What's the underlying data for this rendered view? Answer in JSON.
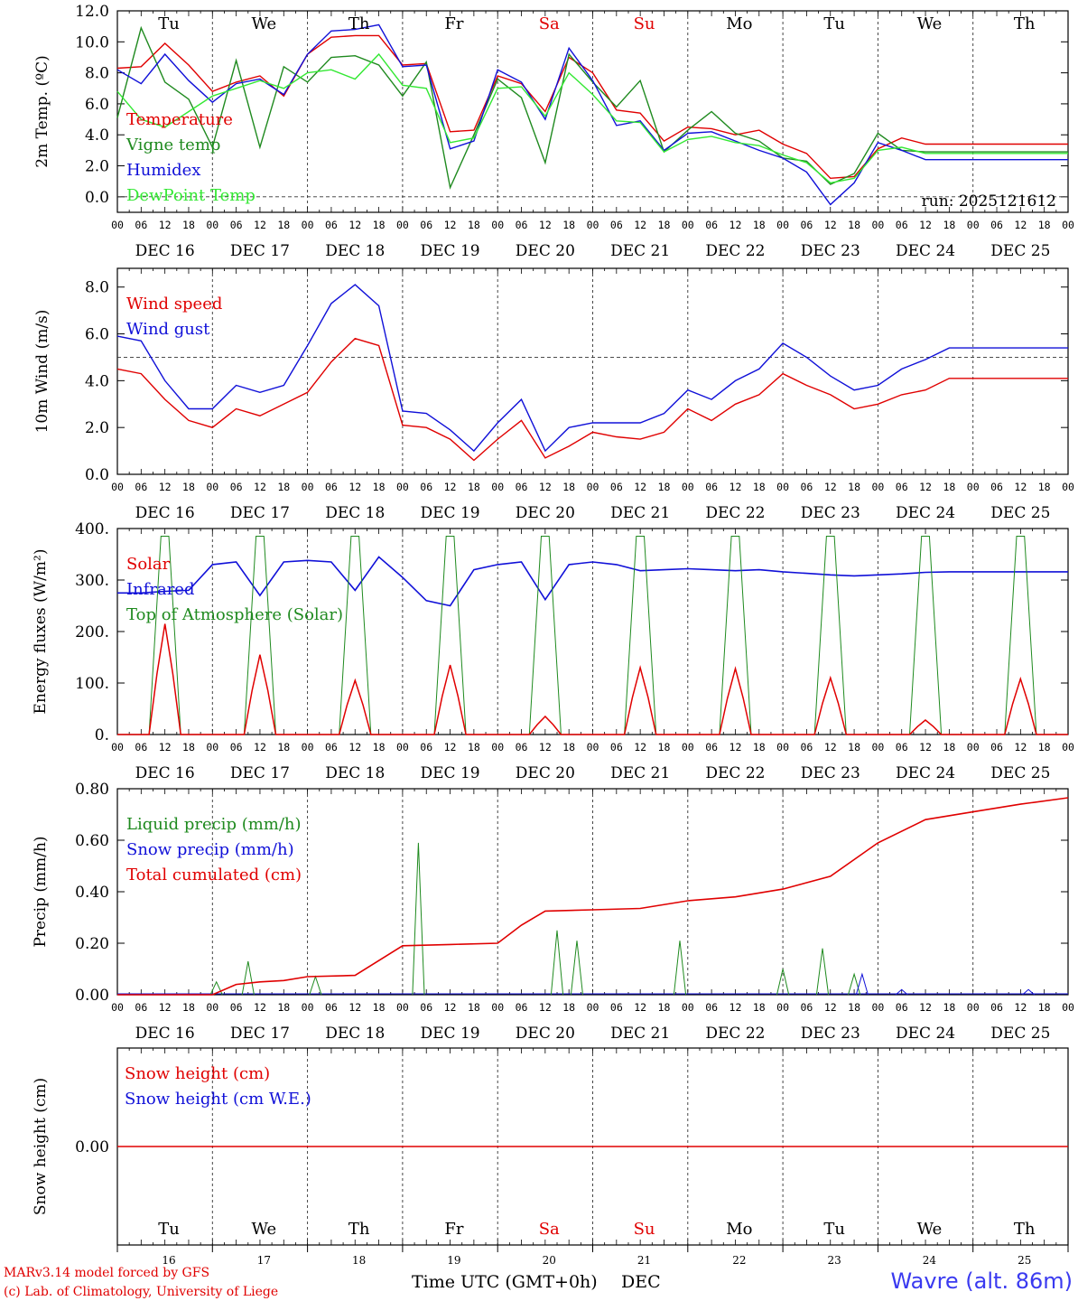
{
  "colors": {
    "red": "#e00000",
    "green": "#1f8a1f",
    "blue": "#1010d8",
    "lightgreen": "#33e833",
    "axis": "#000000",
    "grid": "#333333",
    "weekend": "#e00000"
  },
  "x_ticks": [
    "00",
    "06",
    "12",
    "18"
  ],
  "x_end_tick": "00",
  "dates": [
    "DEC 16",
    "DEC 17",
    "DEC 18",
    "DEC 19",
    "DEC 20",
    "DEC 21",
    "DEC 22",
    "DEC 23",
    "DEC 24",
    "DEC 25"
  ],
  "day_names": [
    {
      "label": "Tu",
      "weekend": false
    },
    {
      "label": "We",
      "weekend": false
    },
    {
      "label": "Th",
      "weekend": false
    },
    {
      "label": "Fr",
      "weekend": false
    },
    {
      "label": "Sa",
      "weekend": true
    },
    {
      "label": "Su",
      "weekend": true
    },
    {
      "label": "Mo",
      "weekend": false
    },
    {
      "label": "Tu",
      "weekend": false
    },
    {
      "label": "We",
      "weekend": false
    },
    {
      "label": "Th",
      "weekend": false
    }
  ],
  "day_numbers": [
    "16",
    "17",
    "18",
    "19",
    "20",
    "21",
    "22",
    "23",
    "24",
    "25"
  ],
  "footer": {
    "line1": "MARv3.14 model forced by GFS",
    "line2": "(c) Lab. of Climatology, University of Liege",
    "xtitle": "Time UTC (GMT+0h)",
    "month": "DEC",
    "station": "Wavre (alt. 86m)"
  },
  "chart_data": [
    {
      "id": "temp",
      "type": "line",
      "ylabel": "2m Temp. (ºC)",
      "ylim": [
        -1,
        12
      ],
      "yticks": [
        "0.0",
        "2.0",
        "4.0",
        "6.0",
        "8.0",
        "10.0",
        "12.0"
      ],
      "ytick_values": [
        0,
        2,
        4,
        6,
        8,
        10,
        12
      ],
      "ref_line": 0,
      "annotation": "run: 2025121612",
      "x_hours": [
        0,
        6,
        12,
        18,
        24,
        30,
        36,
        42,
        48,
        54,
        60,
        66,
        72,
        78,
        84,
        90,
        96,
        102,
        108,
        114,
        120,
        126,
        132,
        138,
        144,
        150,
        156,
        162,
        168,
        174,
        180,
        186,
        192,
        198,
        204,
        210,
        216,
        222,
        228,
        234,
        240
      ],
      "series": [
        {
          "name": "Temperature",
          "color": "red",
          "values": [
            8.3,
            8.4,
            9.9,
            8.5,
            6.8,
            7.4,
            7.8,
            6.5,
            9.2,
            10.3,
            10.4,
            10.4,
            8.5,
            8.6,
            4.2,
            4.3,
            7.8,
            7.3,
            5.5,
            9.0,
            8.0,
            5.6,
            5.4,
            3.6,
            4.5,
            4.4,
            4.0,
            4.3,
            3.4,
            2.8,
            1.2,
            1.3,
            3.1,
            3.8,
            3.4,
            3.4,
            3.4,
            3.4,
            3.4,
            3.4,
            3.4
          ]
        },
        {
          "name": "Vigne temp",
          "color": "green",
          "values": [
            5.1,
            10.9,
            7.4,
            6.3,
            3.2,
            8.8,
            3.2,
            8.4,
            7.4,
            9.0,
            9.1,
            8.5,
            6.5,
            8.7,
            0.6,
            4.0,
            7.6,
            6.4,
            2.2,
            9.2,
            7.4,
            5.8,
            7.5,
            2.9,
            4.3,
            5.5,
            4.1,
            3.6,
            2.5,
            2.3,
            0.8,
            1.5,
            4.1,
            3.0,
            2.9,
            2.9,
            2.9,
            2.9,
            2.9,
            2.9,
            2.9
          ]
        },
        {
          "name": "Humidex",
          "color": "blue",
          "values": [
            8.2,
            7.3,
            9.2,
            7.5,
            6.1,
            7.3,
            7.6,
            6.6,
            9.2,
            10.7,
            10.8,
            11.1,
            8.4,
            8.5,
            3.1,
            3.6,
            8.2,
            7.4,
            5.0,
            9.6,
            7.5,
            4.6,
            4.9,
            3.0,
            4.1,
            4.2,
            3.6,
            3.0,
            2.5,
            1.6,
            -0.5,
            0.9,
            3.5,
            3.0,
            2.4,
            2.4,
            2.4,
            2.4,
            2.4,
            2.4,
            2.4
          ]
        },
        {
          "name": "DewPoint Temp",
          "color": "lightgreen",
          "values": [
            6.8,
            5.0,
            4.5,
            5.5,
            6.5,
            7.0,
            7.5,
            7.0,
            8.0,
            8.2,
            7.6,
            9.2,
            7.2,
            7.0,
            3.5,
            3.8,
            7.0,
            7.1,
            5.2,
            8.0,
            6.6,
            4.9,
            4.8,
            2.9,
            3.7,
            3.9,
            3.5,
            3.3,
            2.7,
            2.2,
            0.9,
            1.2,
            3.0,
            3.2,
            2.8,
            2.8,
            2.8,
            2.8,
            2.8,
            2.8,
            2.8
          ]
        }
      ]
    },
    {
      "id": "wind",
      "type": "line",
      "ylabel": "10m Wind (m/s)",
      "ylim": [
        0,
        8.8
      ],
      "yticks": [
        "0.0",
        "2.0",
        "4.0",
        "6.0",
        "8.0"
      ],
      "ytick_values": [
        0,
        2,
        4,
        6,
        8
      ],
      "ref_line": 5,
      "x_hours": [
        0,
        6,
        12,
        18,
        24,
        30,
        36,
        42,
        48,
        54,
        60,
        66,
        72,
        78,
        84,
        90,
        96,
        102,
        108,
        114,
        120,
        126,
        132,
        138,
        144,
        150,
        156,
        162,
        168,
        174,
        180,
        186,
        192,
        198,
        204,
        210,
        216,
        222,
        228,
        234,
        240
      ],
      "series": [
        {
          "name": "Wind speed",
          "color": "red",
          "values": [
            4.5,
            4.3,
            3.2,
            2.3,
            2.0,
            2.8,
            2.5,
            3.0,
            3.5,
            4.8,
            5.8,
            5.5,
            2.1,
            2.0,
            1.5,
            0.6,
            1.5,
            2.3,
            0.7,
            1.2,
            1.8,
            1.6,
            1.5,
            1.8,
            2.8,
            2.3,
            3.0,
            3.4,
            4.3,
            3.8,
            3.4,
            2.8,
            3.0,
            3.4,
            3.6,
            4.1,
            4.1,
            4.1,
            4.1,
            4.1,
            4.1
          ]
        },
        {
          "name": "Wind gust",
          "color": "blue",
          "values": [
            5.9,
            5.7,
            4.0,
            2.8,
            2.8,
            3.8,
            3.5,
            3.8,
            5.5,
            7.3,
            8.1,
            7.2,
            2.7,
            2.6,
            1.9,
            1.0,
            2.2,
            3.2,
            1.0,
            2.0,
            2.2,
            2.2,
            2.2,
            2.6,
            3.6,
            3.2,
            4.0,
            4.5,
            5.6,
            5.0,
            4.2,
            3.6,
            3.8,
            4.5,
            4.9,
            5.4,
            5.4,
            5.4,
            5.4,
            5.4,
            5.4
          ]
        }
      ]
    },
    {
      "id": "energy",
      "type": "line",
      "ylabel": "Energy fluxes (W/m²)",
      "ylim": [
        0,
        400
      ],
      "yticks": [
        "0.",
        "100.",
        "200.",
        "300.",
        "400."
      ],
      "ytick_values": [
        0,
        100,
        200,
        300,
        400
      ],
      "solar_peaks": [
        215,
        155,
        105,
        135,
        35,
        130,
        128,
        110,
        28,
        108
      ],
      "toa_peak": 385,
      "infrared_x_hours": [
        0,
        6,
        12,
        18,
        24,
        30,
        36,
        42,
        48,
        54,
        60,
        66,
        72,
        78,
        84,
        90,
        96,
        102,
        108,
        114,
        120,
        126,
        132,
        138,
        144,
        150,
        156,
        162,
        168,
        174,
        180,
        186,
        192,
        198,
        204,
        210,
        216,
        222,
        228,
        234,
        240
      ],
      "infrared_values": [
        275,
        275,
        278,
        280,
        330,
        335,
        270,
        335,
        338,
        335,
        280,
        345,
        305,
        260,
        250,
        320,
        330,
        335,
        262,
        330,
        335,
        330,
        318,
        320,
        322,
        320,
        318,
        320,
        316,
        313,
        310,
        308,
        310,
        312,
        315,
        316,
        316,
        316,
        316,
        316,
        316
      ],
      "series_names": [
        {
          "name": "Solar",
          "color": "red"
        },
        {
          "name": "Infrared",
          "color": "blue"
        },
        {
          "name": "Top of Atmosphere (Solar)",
          "color": "green"
        }
      ]
    },
    {
      "id": "precip",
      "type": "line",
      "ylabel": "Precip (mm/h)",
      "ylim": [
        0,
        0.8
      ],
      "yticks": [
        "0.00",
        "0.20",
        "0.40",
        "0.60",
        "0.80"
      ],
      "ytick_values": [
        0,
        0.2,
        0.4,
        0.6,
        0.8
      ],
      "x_hours": [
        0,
        12,
        24,
        30,
        36,
        42,
        48,
        60,
        72,
        84,
        96,
        102,
        108,
        120,
        132,
        144,
        156,
        168,
        180,
        192,
        204,
        216,
        228,
        240
      ],
      "total_cumulated": [
        0,
        0,
        0,
        0.04,
        0.05,
        0.055,
        0.07,
        0.075,
        0.19,
        0.195,
        0.2,
        0.27,
        0.325,
        0.33,
        0.335,
        0.365,
        0.38,
        0.41,
        0.46,
        0.59,
        0.68,
        0.71,
        0.74,
        0.765
      ],
      "liquid_spikes": [
        {
          "h": 25,
          "v": 0.05
        },
        {
          "h": 33,
          "v": 0.13
        },
        {
          "h": 50,
          "v": 0.07
        },
        {
          "h": 76,
          "v": 0.59
        },
        {
          "h": 111,
          "v": 0.25
        },
        {
          "h": 116,
          "v": 0.21
        },
        {
          "h": 142,
          "v": 0.21
        },
        {
          "h": 168,
          "v": 0.1
        },
        {
          "h": 178,
          "v": 0.18
        },
        {
          "h": 186,
          "v": 0.08
        }
      ],
      "snow_spikes": [
        {
          "h": 188,
          "v": 0.08
        },
        {
          "h": 198,
          "v": 0.02
        },
        {
          "h": 230,
          "v": 0.02
        }
      ],
      "series_names": [
        {
          "name": "Liquid precip (mm/h)",
          "color": "green"
        },
        {
          "name": "Snow precip (mm/h)",
          "color": "blue"
        },
        {
          "name": "Total cumulated (cm)",
          "color": "red"
        }
      ]
    },
    {
      "id": "snow",
      "type": "line",
      "ylabel": "Snow height (cm)",
      "ylim": [
        -1,
        1
      ],
      "yticks": [
        "0.00"
      ],
      "ytick_values": [
        0
      ],
      "series": [
        {
          "name": "Snow height (cm)",
          "color": "red",
          "values": [
            0,
            0
          ]
        },
        {
          "name": "Snow height (cm W.E.)",
          "color": "blue",
          "values": [
            0,
            0
          ]
        }
      ]
    }
  ]
}
